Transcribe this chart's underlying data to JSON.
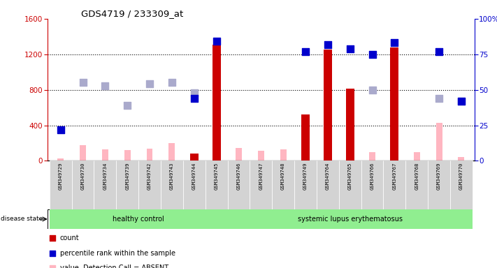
{
  "title": "GDS4719 / 233309_at",
  "samples": [
    "GSM349729",
    "GSM349730",
    "GSM349734",
    "GSM349739",
    "GSM349742",
    "GSM349743",
    "GSM349744",
    "GSM349745",
    "GSM349746",
    "GSM349747",
    "GSM349748",
    "GSM349749",
    "GSM349764",
    "GSM349765",
    "GSM349766",
    "GSM349767",
    "GSM349768",
    "GSM349769",
    "GSM349770"
  ],
  "healthy_count": 8,
  "disease_state_healthy": "healthy control",
  "disease_state_lupus": "systemic lupus erythematosus",
  "count_values": [
    null,
    null,
    null,
    null,
    null,
    null,
    80,
    1310,
    null,
    null,
    null,
    520,
    1250,
    810,
    null,
    1280,
    null,
    null,
    null
  ],
  "percentile_values": [
    22,
    null,
    null,
    null,
    null,
    null,
    44,
    84,
    null,
    null,
    null,
    77,
    82,
    79,
    75,
    83,
    null,
    77,
    42
  ],
  "value_absent": [
    30,
    175,
    130,
    120,
    140,
    200,
    15,
    15,
    145,
    110,
    130,
    15,
    15,
    15,
    100,
    15,
    100,
    430,
    40
  ],
  "rank_absent": [
    null,
    55,
    53,
    39,
    54,
    55,
    48,
    null,
    null,
    null,
    null,
    null,
    null,
    null,
    50,
    null,
    null,
    44,
    42
  ],
  "ylim_left": [
    0,
    1600
  ],
  "ylim_right": [
    0,
    100
  ],
  "yticks_left": [
    0,
    400,
    800,
    1200,
    1600
  ],
  "yticks_right": [
    0,
    25,
    50,
    75,
    100
  ],
  "count_color": "#CC0000",
  "percentile_color": "#0000CC",
  "value_absent_color": "#FFB6C1",
  "rank_absent_color": "#AAAACC",
  "bg_color": "#FFFFFF",
  "sample_bg": "#D3D3D3",
  "healthy_bg": "#90EE90",
  "lupus_bg": "#90EE90"
}
